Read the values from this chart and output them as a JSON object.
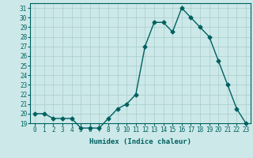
{
  "x": [
    0,
    1,
    2,
    3,
    4,
    5,
    6,
    7,
    8,
    9,
    10,
    11,
    12,
    13,
    14,
    15,
    16,
    17,
    18,
    19,
    20,
    21,
    22,
    23
  ],
  "y": [
    20,
    20,
    19.5,
    19.5,
    19.5,
    18.5,
    18.5,
    18.5,
    19.5,
    20.5,
    21,
    22,
    27,
    29.5,
    29.5,
    28.5,
    31,
    30,
    29,
    28,
    25.5,
    23,
    20.5,
    19
  ],
  "line_color": "#006060",
  "marker": "D",
  "markersize": 2.5,
  "linewidth": 1.0,
  "background_color": "#cce8e8",
  "grid_color": "#aacccc",
  "xlabel": "Humidex (Indice chaleur)",
  "ylim": [
    19,
    31.5
  ],
  "yticks": [
    19,
    20,
    21,
    22,
    23,
    24,
    25,
    26,
    27,
    28,
    29,
    30,
    31
  ],
  "xlim": [
    -0.5,
    23.5
  ],
  "xticks": [
    0,
    1,
    2,
    3,
    4,
    5,
    6,
    7,
    8,
    9,
    10,
    11,
    12,
    13,
    14,
    15,
    16,
    17,
    18,
    19,
    20,
    21,
    22,
    23
  ],
  "xlabel_fontsize": 6.5,
  "tick_fontsize": 5.5,
  "tick_color": "#006060",
  "axis_color": "#006060"
}
